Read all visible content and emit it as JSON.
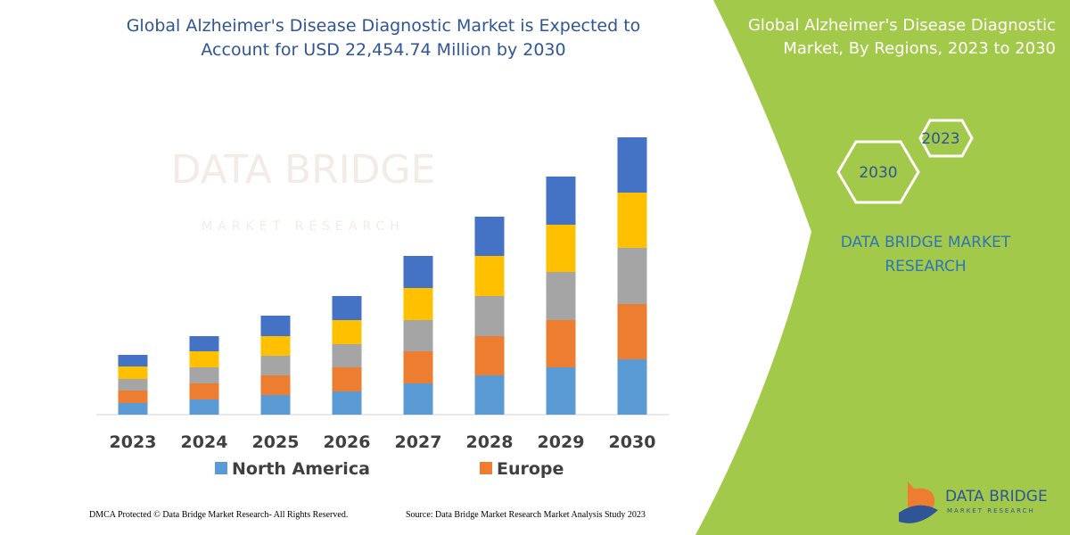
{
  "chart_data": {
    "type": "bar",
    "stacked": true,
    "title": "Global Alzheimer's Disease Diagnostic Market is Expected to Account for USD 22,454.74 Million by 2030",
    "categories": [
      "2023",
      "2024",
      "2025",
      "2026",
      "2027",
      "2028",
      "2029",
      "2030"
    ],
    "series": [
      {
        "name": "North America",
        "color": "#5b9bd5",
        "values": [
          13,
          17,
          22,
          26,
          35,
          44,
          53,
          62
        ]
      },
      {
        "name": "Europe",
        "color": "#ed7d31",
        "values": [
          14,
          18,
          22,
          27,
          36,
          44,
          53,
          62
        ]
      },
      {
        "color": "#a5a5a5",
        "values": [
          13,
          18,
          22,
          26,
          35,
          45,
          54,
          63
        ]
      },
      {
        "color": "#ffc000",
        "values": [
          14,
          18,
          22,
          27,
          36,
          45,
          53,
          62
        ]
      },
      {
        "color": "#4472c4",
        "values": [
          13,
          17,
          23,
          27,
          36,
          44,
          54,
          62
        ]
      }
    ],
    "ylim": [
      0,
      320
    ]
  },
  "watermark": {
    "brand": "DATA BRIDGE",
    "tagline": "MARKET RESEARCH"
  },
  "panel": {
    "title": "Global Alzheimer's Disease Diagnostic Market, By Regions, 2023 to 2030",
    "hex_top": "2023",
    "hex_bottom": "2030",
    "company": "DATA BRIDGE MARKET RESEARCH"
  },
  "footer": {
    "rights": "DMCA Protected © Data Bridge Market Research- All Rights Reserved.",
    "source": "Source: Data Bridge Market Research  Market Analysis Study 2023"
  },
  "logo": {
    "brand": "DATA BRIDGE",
    "tagline": "MARKET RESEARCH"
  }
}
